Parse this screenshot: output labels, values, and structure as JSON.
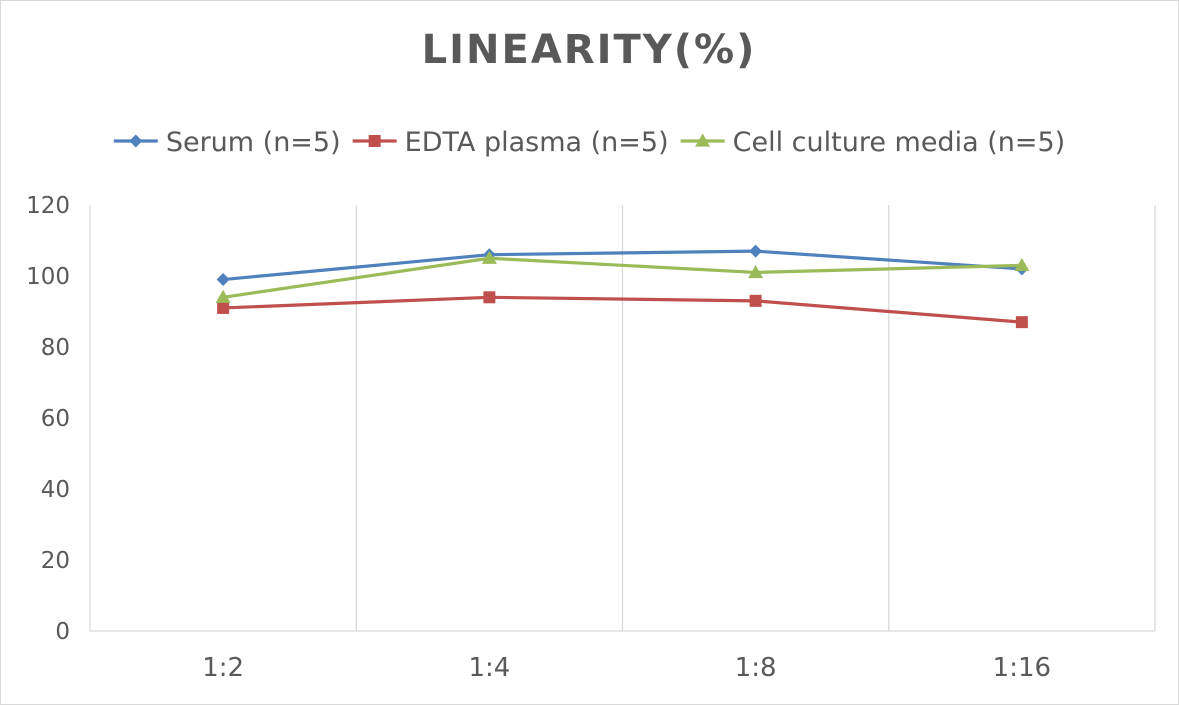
{
  "chart_data": {
    "type": "line",
    "title": "LINEARITY(%)",
    "xlabel": "",
    "ylabel": "",
    "categories": [
      "1:2",
      "1:4",
      "1:8",
      "1:16"
    ],
    "ylim": [
      0,
      120
    ],
    "yticks": [
      0,
      20,
      40,
      60,
      80,
      100,
      120
    ],
    "grid": "vertical",
    "legend_position": "top",
    "series": [
      {
        "name": "Serum (n=5)",
        "values": [
          99,
          106,
          107,
          102
        ],
        "color": "#4f81bd",
        "marker": "diamond"
      },
      {
        "name": "EDTA plasma (n=5)",
        "values": [
          91,
          94,
          93,
          87
        ],
        "color": "#c0504d",
        "marker": "square"
      },
      {
        "name": "Cell culture media (n=5)",
        "values": [
          94,
          105,
          101,
          103
        ],
        "color": "#9bbb59",
        "marker": "triangle"
      }
    ]
  }
}
